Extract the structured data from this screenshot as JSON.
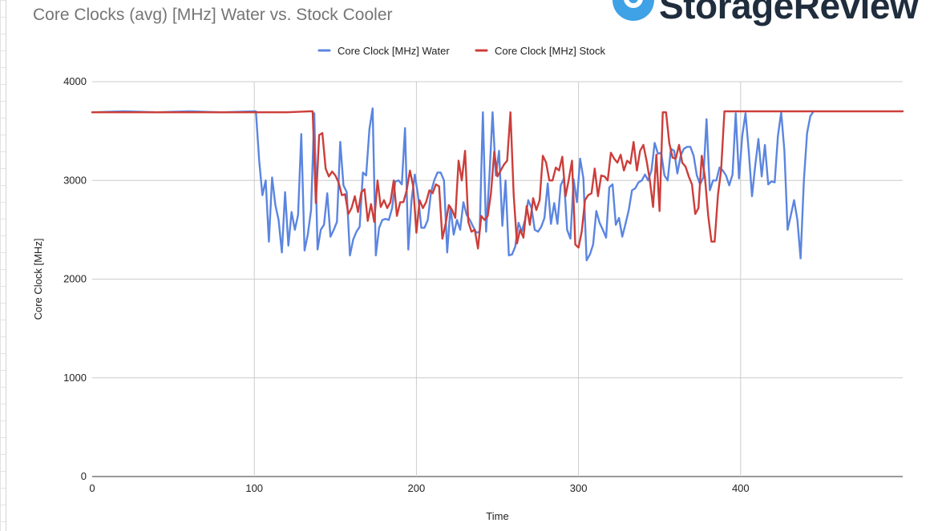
{
  "app": {
    "brand_name": "StorageReview",
    "brand_color": "#1f2d3d",
    "brand_icon": "location-pin-icon"
  },
  "chart_data": {
    "type": "line",
    "title": "Core Clocks (avg) [MHz] Water vs. Stock Cooler",
    "xlabel": "Time",
    "ylabel": "Core Clock [MHz]",
    "xlim": [
      0,
      500
    ],
    "ylim": [
      0,
      4000
    ],
    "x_ticks": [
      0,
      100,
      200,
      300,
      400
    ],
    "y_ticks": [
      0,
      1000,
      2000,
      3000,
      4000
    ],
    "grid": true,
    "legend_position": "top",
    "series": [
      {
        "name": "Core Clock [MHz] Water",
        "color": "#5b85e0",
        "points": [
          [
            0,
            3690
          ],
          [
            20,
            3700
          ],
          [
            40,
            3690
          ],
          [
            60,
            3700
          ],
          [
            80,
            3690
          ],
          [
            101,
            3700
          ],
          [
            103,
            3200
          ],
          [
            105,
            2850
          ],
          [
            107,
            3000
          ],
          [
            109,
            2380
          ],
          [
            111,
            3030
          ],
          [
            113,
            2750
          ],
          [
            115,
            2600
          ],
          [
            117,
            2270
          ],
          [
            119,
            2880
          ],
          [
            121,
            2340
          ],
          [
            123,
            2680
          ],
          [
            125,
            2500
          ],
          [
            127,
            2650
          ],
          [
            129,
            3470
          ],
          [
            131,
            2290
          ],
          [
            133,
            2450
          ],
          [
            135,
            2700
          ],
          [
            137,
            3680
          ],
          [
            139,
            2300
          ],
          [
            141,
            2500
          ],
          [
            143,
            2550
          ],
          [
            145,
            2870
          ],
          [
            147,
            2430
          ],
          [
            149,
            2500
          ],
          [
            151,
            2580
          ],
          [
            153,
            3390
          ],
          [
            155,
            2950
          ],
          [
            157,
            2880
          ],
          [
            159,
            2240
          ],
          [
            161,
            2400
          ],
          [
            163,
            2480
          ],
          [
            165,
            2530
          ],
          [
            167,
            3080
          ],
          [
            169,
            3050
          ],
          [
            171,
            3520
          ],
          [
            173,
            3730
          ],
          [
            175,
            2240
          ],
          [
            177,
            2520
          ],
          [
            179,
            2600
          ],
          [
            181,
            2610
          ],
          [
            183,
            2600
          ],
          [
            185,
            2720
          ],
          [
            187,
            2990
          ],
          [
            189,
            3000
          ],
          [
            191,
            2960
          ],
          [
            193,
            3530
          ],
          [
            195,
            2300
          ],
          [
            197,
            2800
          ],
          [
            199,
            3060
          ],
          [
            201,
            2850
          ],
          [
            203,
            2520
          ],
          [
            205,
            2520
          ],
          [
            207,
            2600
          ],
          [
            209,
            2880
          ],
          [
            211,
            3000
          ],
          [
            213,
            3080
          ],
          [
            215,
            3080
          ],
          [
            217,
            3000
          ],
          [
            219,
            2270
          ],
          [
            221,
            2730
          ],
          [
            223,
            2450
          ],
          [
            225,
            2600
          ],
          [
            227,
            2500
          ],
          [
            229,
            2780
          ],
          [
            231,
            2650
          ],
          [
            233,
            2600
          ],
          [
            235,
            2530
          ],
          [
            237,
            2470
          ],
          [
            239,
            2480
          ],
          [
            241,
            3690
          ],
          [
            243,
            2480
          ],
          [
            245,
            3030
          ],
          [
            247,
            3690
          ],
          [
            249,
            3050
          ],
          [
            251,
            3300
          ],
          [
            253,
            2540
          ],
          [
            255,
            3000
          ],
          [
            257,
            2240
          ],
          [
            259,
            2250
          ],
          [
            261,
            2330
          ],
          [
            263,
            2570
          ],
          [
            265,
            2480
          ],
          [
            267,
            2600
          ],
          [
            269,
            2800
          ],
          [
            271,
            2720
          ],
          [
            273,
            2500
          ],
          [
            275,
            2480
          ],
          [
            277,
            2530
          ],
          [
            279,
            2620
          ],
          [
            281,
            2970
          ],
          [
            283,
            2560
          ],
          [
            285,
            2770
          ],
          [
            287,
            2560
          ],
          [
            289,
            2950
          ],
          [
            291,
            3020
          ],
          [
            293,
            2500
          ],
          [
            295,
            2410
          ],
          [
            297,
            3010
          ],
          [
            299,
            2780
          ],
          [
            301,
            3220
          ],
          [
            303,
            3020
          ],
          [
            305,
            2190
          ],
          [
            307,
            2250
          ],
          [
            309,
            2350
          ],
          [
            311,
            2690
          ],
          [
            313,
            2570
          ],
          [
            315,
            2500
          ],
          [
            317,
            2420
          ],
          [
            319,
            2930
          ],
          [
            321,
            2960
          ],
          [
            323,
            2550
          ],
          [
            325,
            2620
          ],
          [
            327,
            2430
          ],
          [
            329,
            2560
          ],
          [
            331,
            2700
          ],
          [
            333,
            2900
          ],
          [
            335,
            2920
          ],
          [
            337,
            2980
          ],
          [
            339,
            3000
          ],
          [
            341,
            3060
          ],
          [
            343,
            3000
          ],
          [
            345,
            3100
          ],
          [
            347,
            3380
          ],
          [
            349,
            3270
          ],
          [
            351,
            3280
          ],
          [
            353,
            3050
          ],
          [
            355,
            3000
          ],
          [
            357,
            3320
          ],
          [
            359,
            3300
          ],
          [
            361,
            3070
          ],
          [
            363,
            3250
          ],
          [
            365,
            3320
          ],
          [
            367,
            3340
          ],
          [
            369,
            3340
          ],
          [
            371,
            3250
          ],
          [
            373,
            3050
          ],
          [
            375,
            2960
          ],
          [
            377,
            3030
          ],
          [
            379,
            3620
          ],
          [
            381,
            2900
          ],
          [
            383,
            3000
          ],
          [
            385,
            3000
          ],
          [
            387,
            3130
          ],
          [
            389,
            3100
          ],
          [
            391,
            3050
          ],
          [
            393,
            2950
          ],
          [
            395,
            3060
          ],
          [
            397,
            3680
          ],
          [
            399,
            3020
          ],
          [
            401,
            3450
          ],
          [
            403,
            3680
          ],
          [
            405,
            3300
          ],
          [
            407,
            2840
          ],
          [
            409,
            3150
          ],
          [
            411,
            3420
          ],
          [
            413,
            3040
          ],
          [
            415,
            3360
          ],
          [
            417,
            2960
          ],
          [
            419,
            2990
          ],
          [
            421,
            2980
          ],
          [
            423,
            3450
          ],
          [
            425,
            3690
          ],
          [
            427,
            3300
          ],
          [
            429,
            2500
          ],
          [
            431,
            2650
          ],
          [
            433,
            2800
          ],
          [
            435,
            2600
          ],
          [
            437,
            2210
          ],
          [
            439,
            3000
          ],
          [
            441,
            3480
          ],
          [
            443,
            3650
          ],
          [
            445,
            3700
          ]
        ]
      },
      {
        "name": "Core Clock [MHz] Stock",
        "color": "#cc3e3a",
        "points": [
          [
            0,
            3690
          ],
          [
            30,
            3690
          ],
          [
            60,
            3690
          ],
          [
            90,
            3690
          ],
          [
            120,
            3690
          ],
          [
            134,
            3700
          ],
          [
            136,
            3700
          ],
          [
            138,
            2770
          ],
          [
            140,
            3460
          ],
          [
            142,
            3480
          ],
          [
            144,
            3120
          ],
          [
            146,
            3040
          ],
          [
            148,
            3090
          ],
          [
            150,
            3050
          ],
          [
            152,
            2980
          ],
          [
            154,
            2850
          ],
          [
            156,
            2860
          ],
          [
            158,
            2660
          ],
          [
            160,
            2720
          ],
          [
            162,
            2840
          ],
          [
            164,
            2680
          ],
          [
            166,
            2880
          ],
          [
            168,
            2910
          ],
          [
            170,
            2590
          ],
          [
            172,
            2760
          ],
          [
            174,
            2580
          ],
          [
            176,
            3000
          ],
          [
            178,
            2730
          ],
          [
            180,
            2800
          ],
          [
            182,
            2720
          ],
          [
            184,
            2780
          ],
          [
            186,
            3000
          ],
          [
            188,
            2640
          ],
          [
            190,
            2780
          ],
          [
            192,
            2780
          ],
          [
            194,
            2900
          ],
          [
            196,
            3100
          ],
          [
            198,
            2940
          ],
          [
            200,
            2470
          ],
          [
            202,
            2800
          ],
          [
            204,
            2720
          ],
          [
            206,
            2780
          ],
          [
            208,
            2900
          ],
          [
            210,
            2870
          ],
          [
            212,
            2960
          ],
          [
            214,
            2940
          ],
          [
            216,
            2410
          ],
          [
            218,
            2560
          ],
          [
            220,
            2750
          ],
          [
            222,
            2700
          ],
          [
            224,
            2620
          ],
          [
            226,
            3200
          ],
          [
            228,
            3000
          ],
          [
            230,
            3300
          ],
          [
            232,
            2580
          ],
          [
            234,
            2480
          ],
          [
            236,
            2500
          ],
          [
            238,
            2310
          ],
          [
            240,
            2640
          ],
          [
            242,
            2600
          ],
          [
            244,
            2640
          ],
          [
            246,
            2870
          ],
          [
            248,
            3290
          ],
          [
            250,
            3040
          ],
          [
            252,
            3100
          ],
          [
            254,
            3160
          ],
          [
            256,
            3200
          ],
          [
            258,
            3690
          ],
          [
            260,
            2860
          ],
          [
            262,
            2360
          ],
          [
            264,
            2500
          ],
          [
            266,
            2420
          ],
          [
            268,
            2740
          ],
          [
            270,
            2550
          ],
          [
            272,
            2820
          ],
          [
            274,
            2700
          ],
          [
            276,
            2800
          ],
          [
            278,
            3250
          ],
          [
            280,
            3180
          ],
          [
            282,
            3000
          ],
          [
            284,
            3000
          ],
          [
            286,
            3130
          ],
          [
            288,
            3100
          ],
          [
            290,
            3240
          ],
          [
            292,
            2840
          ],
          [
            294,
            3010
          ],
          [
            296,
            3200
          ],
          [
            298,
            2350
          ],
          [
            300,
            2320
          ],
          [
            302,
            2480
          ],
          [
            304,
            2800
          ],
          [
            306,
            2850
          ],
          [
            308,
            2870
          ],
          [
            310,
            3120
          ],
          [
            312,
            2840
          ],
          [
            314,
            3050
          ],
          [
            316,
            3040
          ],
          [
            318,
            3000
          ],
          [
            320,
            3280
          ],
          [
            322,
            3220
          ],
          [
            324,
            3180
          ],
          [
            326,
            3260
          ],
          [
            328,
            3100
          ],
          [
            330,
            3200
          ],
          [
            332,
            3170
          ],
          [
            334,
            3390
          ],
          [
            336,
            3100
          ],
          [
            338,
            3300
          ],
          [
            340,
            3360
          ],
          [
            342,
            3200
          ],
          [
            344,
            3000
          ],
          [
            346,
            2730
          ],
          [
            348,
            3260
          ],
          [
            350,
            2690
          ],
          [
            352,
            3690
          ],
          [
            354,
            3690
          ],
          [
            356,
            3380
          ],
          [
            358,
            3230
          ],
          [
            360,
            3220
          ],
          [
            362,
            3360
          ],
          [
            364,
            3180
          ],
          [
            366,
            3140
          ],
          [
            368,
            3040
          ],
          [
            370,
            2960
          ],
          [
            372,
            2660
          ],
          [
            374,
            2720
          ],
          [
            376,
            3250
          ],
          [
            378,
            3030
          ],
          [
            380,
            2640
          ],
          [
            382,
            2380
          ],
          [
            384,
            2380
          ],
          [
            386,
            2850
          ],
          [
            388,
            3110
          ],
          [
            390,
            3700
          ],
          [
            400,
            3700
          ],
          [
            420,
            3700
          ],
          [
            460,
            3700
          ],
          [
            500,
            3700
          ]
        ]
      }
    ]
  }
}
